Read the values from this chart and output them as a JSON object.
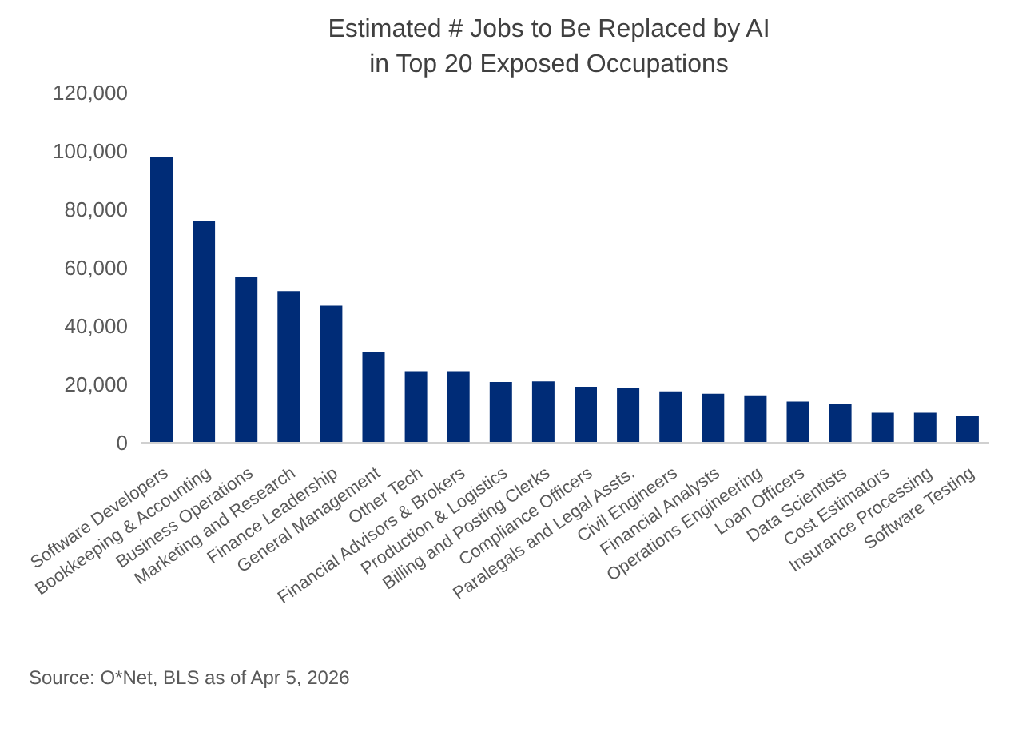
{
  "chart_data": {
    "type": "bar",
    "title": "Estimated # Jobs to Be Replaced by AI\nin Top 20 Exposed Occupations",
    "categories": [
      "Software Developers",
      "Bookkeeping & Accounting",
      "Business Operations",
      "Marketing and Research",
      "Finance Leadership",
      "General Management",
      "Other Tech",
      "Financial Advisors & Brokers",
      "Production & Logistics",
      "Billing and Posting Clerks",
      "Compliance Officers",
      "Paralegals and Legal Assts.",
      "Civil Engineers",
      "Financial Analysts",
      "Operations Engineering",
      "Loan Officers",
      "Data Scientists",
      "Cost Estimators",
      "Insurance Processing",
      "Software Testing"
    ],
    "values": [
      98000,
      76000,
      57000,
      52000,
      47000,
      31000,
      24500,
      24500,
      20800,
      21000,
      19200,
      18600,
      17600,
      16800,
      16200,
      14100,
      13200,
      10300,
      10300,
      9300
    ],
    "color": "#002c77",
    "ylim": [
      0,
      120000
    ],
    "yticks": [
      0,
      {
        "value": 20000,
        "label": "20,000"
      },
      {
        "value": 40000,
        "label": "40,000"
      },
      {
        "value": 60000,
        "label": "60,000"
      },
      {
        "value": 80000,
        "label": "80,000"
      },
      {
        "value": 100000,
        "label": "100,000"
      },
      {
        "value": 120000,
        "label": "120,000"
      }
    ],
    "grid": false,
    "annotations": [
      "Source: O*Net, BLS as of Apr 5, 2026"
    ]
  }
}
